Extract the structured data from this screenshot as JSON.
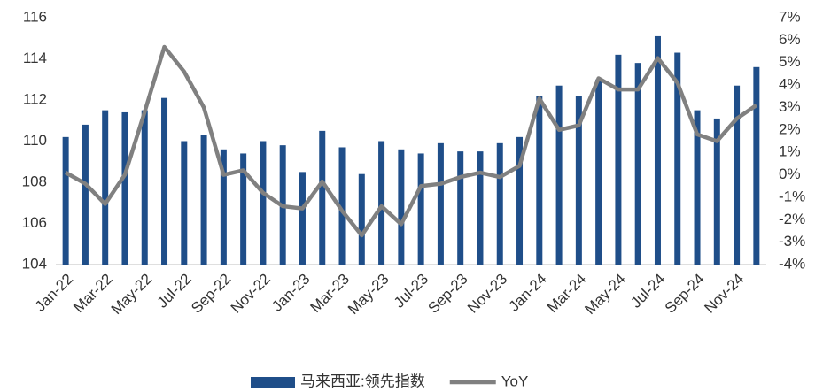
{
  "chart_data": {
    "type": "bar_line",
    "categories": [
      "Jan-22",
      null,
      "Mar-22",
      null,
      "May-22",
      null,
      "Jul-22",
      null,
      "Sep-22",
      null,
      "Nov-22",
      null,
      "Jan-23",
      null,
      "Mar-23",
      null,
      "May-23",
      null,
      "Jul-23",
      null,
      "Sep-23",
      null,
      "Nov-23",
      null,
      "Jan-24",
      null,
      "Mar-24",
      null,
      "May-24",
      null,
      "Jul-24",
      null,
      "Sep-24",
      null,
      "Nov-24",
      null
    ],
    "series": [
      {
        "name": "马来西亚:领先指数",
        "type": "bar",
        "color": "#1f4e89",
        "values": [
          110.2,
          110.8,
          111.5,
          111.4,
          111.5,
          112.1,
          110.0,
          110.3,
          109.6,
          109.4,
          110.0,
          109.8,
          108.5,
          110.5,
          109.7,
          108.4,
          110.0,
          109.6,
          109.4,
          109.9,
          109.5,
          109.5,
          109.9,
          110.2,
          112.2,
          112.7,
          112.2,
          113.0,
          114.2,
          113.8,
          115.1,
          114.3,
          111.5,
          111.1,
          112.7,
          113.6
        ]
      },
      {
        "name": "YoY",
        "type": "line",
        "axis": "y2",
        "color": "#808080",
        "values": [
          0.1,
          -0.4,
          -1.3,
          0.0,
          2.8,
          5.7,
          4.6,
          3.0,
          0.0,
          0.2,
          -0.8,
          -1.4,
          -1.5,
          -0.3,
          -1.6,
          -2.7,
          -1.4,
          -2.2,
          -0.5,
          -0.4,
          -0.1,
          0.1,
          -0.1,
          0.4,
          3.4,
          2.0,
          2.2,
          4.3,
          3.8,
          3.8,
          5.2,
          4.1,
          1.8,
          1.5,
          2.5,
          3.1
        ]
      }
    ],
    "ylim": [
      104,
      116
    ],
    "yticks": [
      104,
      106,
      108,
      110,
      112,
      114,
      116
    ],
    "y2lim": [
      -4,
      7
    ],
    "y2ticks": [
      {
        "value": -4,
        "label": "-4%"
      },
      {
        "value": -3,
        "label": "-3%"
      },
      {
        "value": -2,
        "label": "-2%"
      },
      {
        "value": -1,
        "label": "-1%"
      },
      {
        "value": 0,
        "label": "0%"
      },
      {
        "value": 1,
        "label": "1%"
      },
      {
        "value": 2,
        "label": "2%"
      },
      {
        "value": 3,
        "label": "3%"
      },
      {
        "value": 4,
        "label": "4%"
      },
      {
        "value": 5,
        "label": "5%"
      },
      {
        "value": 6,
        "label": "6%"
      },
      {
        "value": 7,
        "label": "7%"
      }
    ],
    "legend": "bottom"
  }
}
